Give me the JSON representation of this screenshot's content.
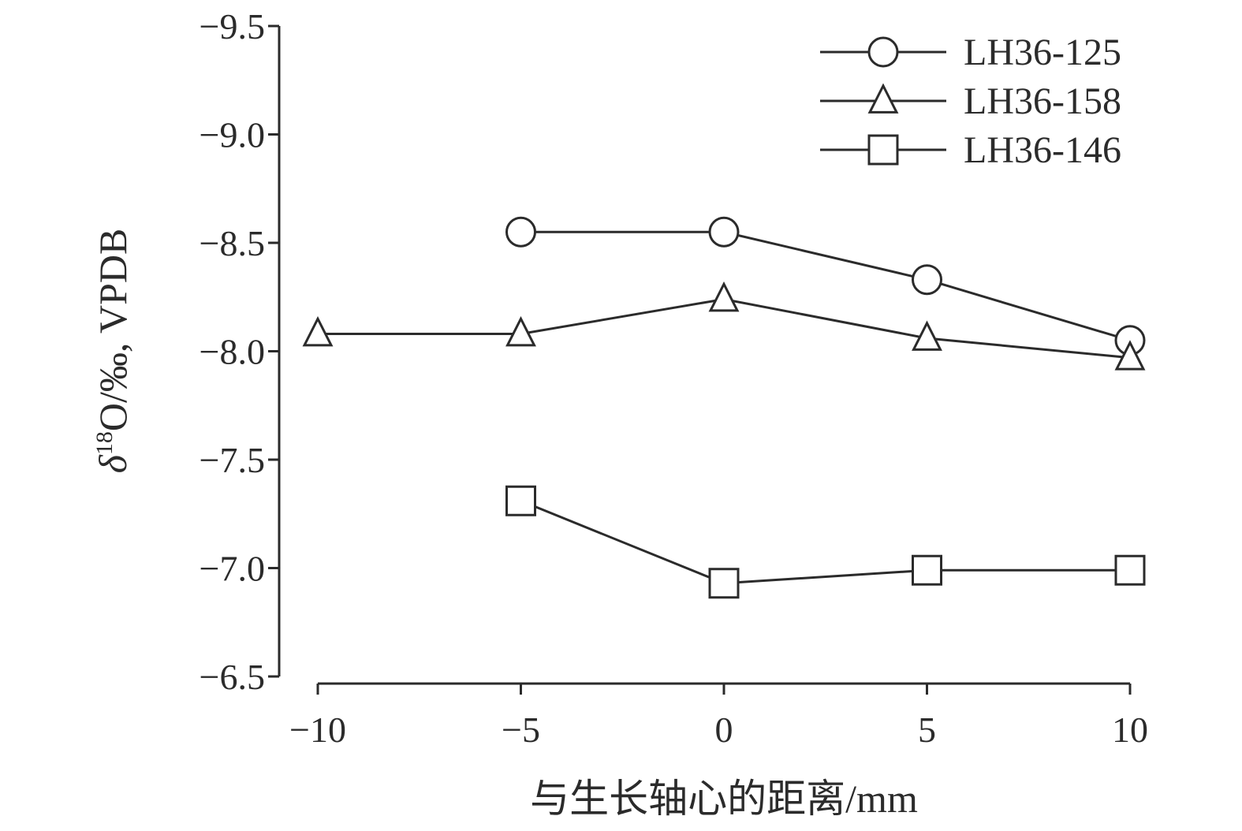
{
  "chart_data": {
    "type": "line",
    "xlabel": "与生长轴心的距离/mm",
    "ylabel": "δ18O/‰, VPDB",
    "ylabel_parts": {
      "delta": "δ",
      "sup": "18",
      "rest": "O/‰, VPDB"
    },
    "x_ticks": [
      -10,
      -5,
      0,
      5,
      10
    ],
    "x_tick_labels": [
      "−10",
      "−5",
      "0",
      "5",
      "10"
    ],
    "y_ticks": [
      -9.5,
      -9.0,
      -8.5,
      -8.0,
      -7.5,
      -7.0,
      -6.5
    ],
    "y_tick_labels": [
      "−9.5",
      "−9.0",
      "−8.5",
      "−8.0",
      "−7.5",
      "−7.0",
      "−6.5"
    ],
    "xlim": [
      -10,
      10
    ],
    "ylim": [
      -9.5,
      -6.5
    ],
    "y_inverted": true,
    "grid": false,
    "legend_position": "top-right",
    "series": [
      {
        "name": "LH36-125",
        "marker": "circle",
        "x": [
          -5,
          0,
          5,
          10
        ],
        "y": [
          -8.55,
          -8.55,
          -8.33,
          -8.05
        ]
      },
      {
        "name": "LH36-158",
        "marker": "triangle",
        "x": [
          -10,
          -5,
          0,
          5,
          10
        ],
        "y": [
          -8.08,
          -8.08,
          -8.24,
          -8.06,
          -7.97
        ]
      },
      {
        "name": "LH36-146",
        "marker": "square",
        "x": [
          -5,
          0,
          5,
          10
        ],
        "y": [
          -7.31,
          -6.93,
          -6.99,
          -6.99
        ]
      }
    ]
  }
}
